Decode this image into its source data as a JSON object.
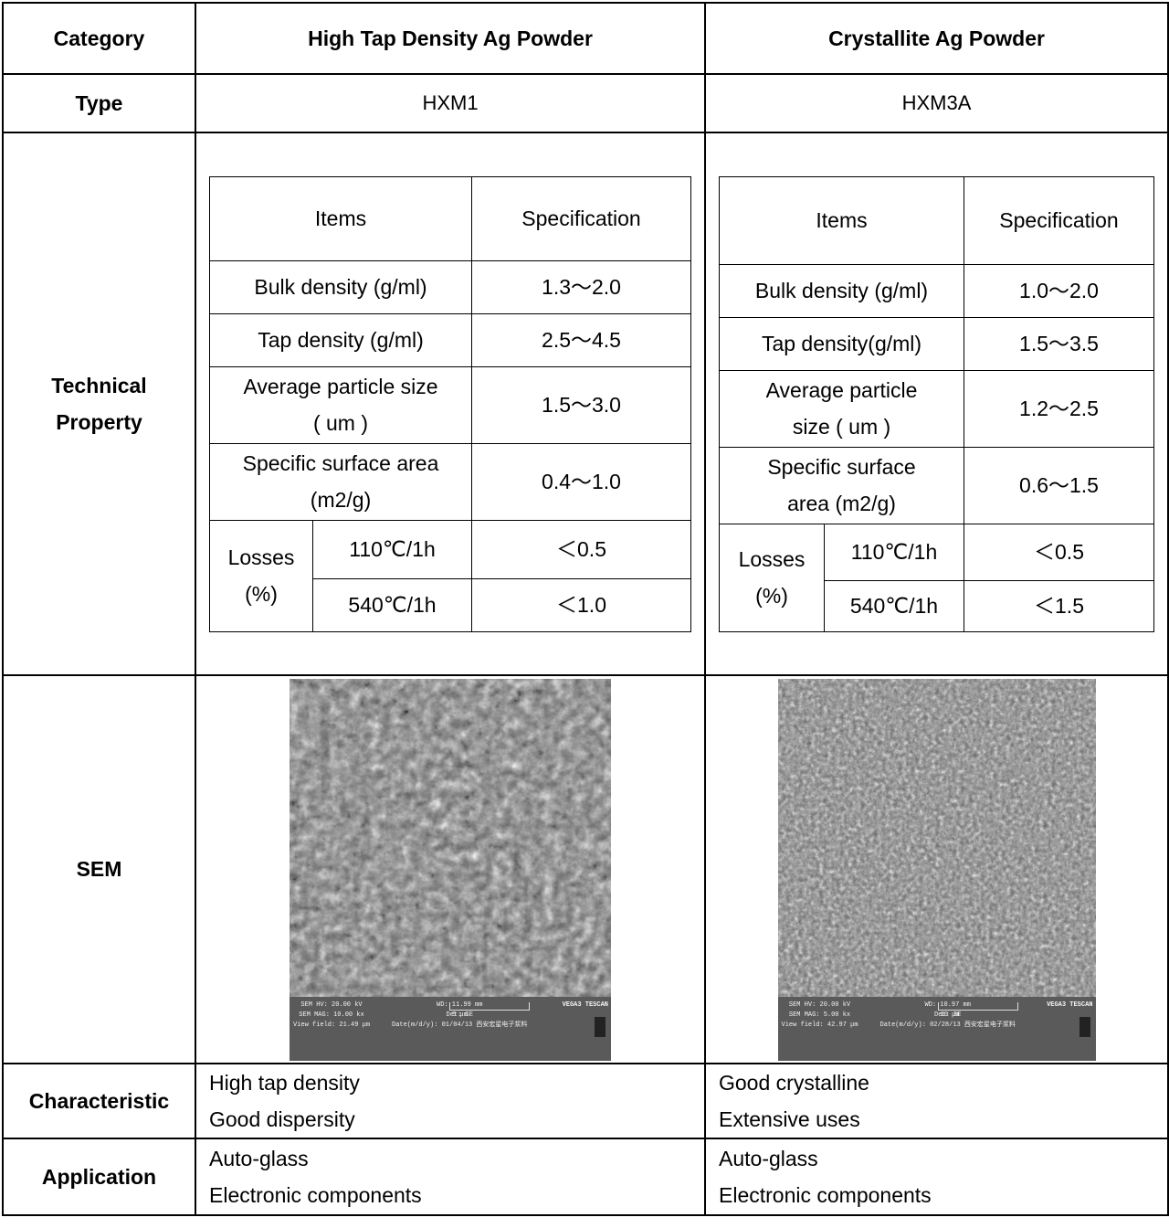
{
  "header": {
    "category_label": "Category",
    "col1": "High Tap Density Ag Powder",
    "col2": "Crystallite Ag Powder"
  },
  "type_row": {
    "label": "Type",
    "col1": "HXM1",
    "col2": "HXM3A"
  },
  "technical": {
    "label_line1": "Technical",
    "label_line2": "Property",
    "col1": {
      "items_header": "Items",
      "spec_header": "Specification",
      "bulk_label": "Bulk density (g/ml)",
      "bulk_value": "1.3～2.0",
      "tap_label": "Tap density (g/ml)",
      "tap_value": "2.5～4.5",
      "aps_line1": "Average particle size",
      "aps_line2": "( um )",
      "aps_value": "1.5～3.0",
      "ssa_line1": "Specific surface area",
      "ssa_line2": "(m2/g)",
      "ssa_value": "0.4～1.0",
      "losses_line1": "Losses",
      "losses_line2": "(%)",
      "cond1": "110℃/1h",
      "cond1_value": "＜0.5",
      "cond2": "540℃/1h",
      "cond2_value": "＜1.0"
    },
    "col2": {
      "items_header": "Items",
      "spec_header": "Specification",
      "bulk_label": "Bulk density (g/ml)",
      "bulk_value": "1.0～2.0",
      "tap_label": "Tap density(g/ml)",
      "tap_value": "1.5～3.5",
      "aps_line1": "Average particle",
      "aps_line2": "size ( um )",
      "aps_value": "1.2～2.5",
      "ssa_line1": "Specific surface",
      "ssa_line2": "area (m2/g)",
      "ssa_value": "0.6～1.5",
      "losses_line1": "Losses",
      "losses_line2": "(%)",
      "cond1": "110℃/1h",
      "cond1_value": "＜0.5",
      "cond2": "540℃/1h",
      "cond2_value": "＜1.5"
    }
  },
  "sem": {
    "label": "SEM",
    "img1": {
      "hv": "SEM HV: 20.00 kV",
      "wd": "WD: 11.99 mm",
      "mag": "SEM MAG: 10.00 kx",
      "det": "Det: SE",
      "scale": "5 μm",
      "view": "View field: 21.49 μm",
      "date": "Date(m/d/y): 01/04/13 西安宏星电子浆料",
      "brand": "VEGA3 TESCAN"
    },
    "img2": {
      "hv": "SEM HV: 20.00 kV",
      "wd": "WD: 10.97 mm",
      "mag": "SEM MAG: 5.00 kx",
      "det": "Det: SE",
      "scale": "10 μm",
      "view": "View field: 42.97 μm",
      "date": "Date(m/d/y): 02/28/13 西安宏星电子浆料",
      "brand": "VEGA3 TESCAN"
    }
  },
  "characteristic": {
    "label": "Characteristic",
    "col1_line1": "High tap density",
    "col1_line2": "Good dispersity",
    "col2_line1": "Good crystalline",
    "col2_line2": "Extensive uses"
  },
  "application": {
    "label": "Application",
    "col1_line1": "Auto-glass",
    "col1_line2": "Electronic components",
    "col2_line1": "Auto-glass",
    "col2_line2": "Electronic components"
  },
  "colors": {
    "border": "#000000",
    "sem_background": "#6d6d6d",
    "sem_info_bar": "#5a5a5a"
  }
}
